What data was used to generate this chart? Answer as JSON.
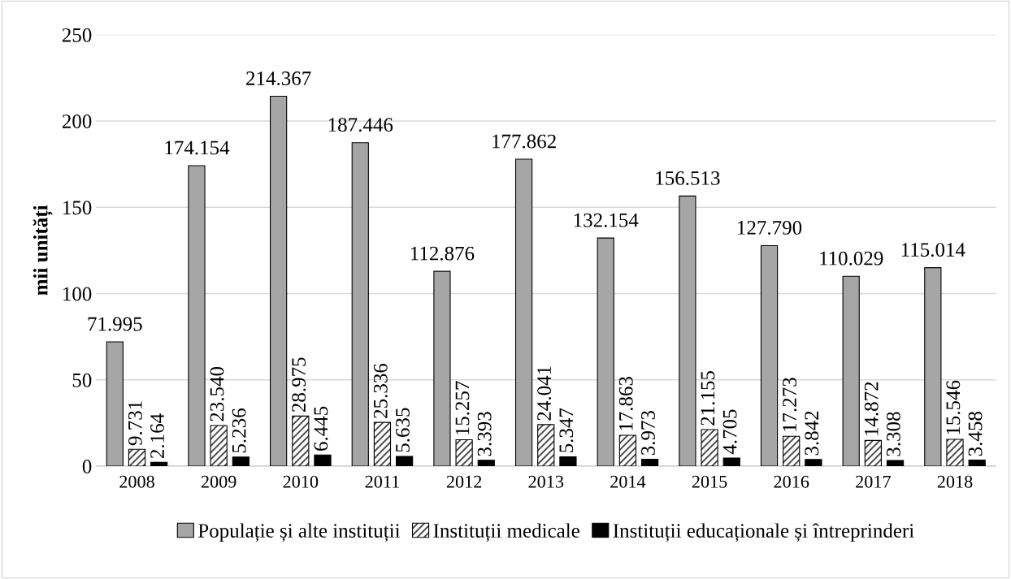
{
  "chart_data": {
    "type": "bar",
    "ylabel": "mii unități",
    "categories": [
      "2008",
      "2009",
      "2010",
      "2011",
      "2012",
      "2013",
      "2014",
      "2015",
      "2016",
      "2017",
      "2018"
    ],
    "series": [
      {
        "name": "Populație și alte instituții",
        "color": "#a6a6a6",
        "values": [
          71.995,
          174.154,
          214.367,
          187.446,
          112.876,
          177.862,
          132.154,
          156.513,
          127.79,
          110.029,
          115.014
        ],
        "value_labels": [
          "71.995",
          "174.154",
          "214.367",
          "187.446",
          "112.876",
          "177.862",
          "132.154",
          "156.513",
          "127.790",
          "110.029",
          "115.014"
        ]
      },
      {
        "name": "Instituții medicale",
        "color": "#000000",
        "values": [
          9.731,
          23.54,
          28.975,
          25.336,
          15.257,
          24.041,
          17.863,
          21.155,
          17.273,
          14.872,
          15.546
        ],
        "value_labels": [
          "9.731",
          "23.540",
          "28.975",
          "25.336",
          "15.257",
          "24.041",
          "17.863",
          "21.155",
          "17.273",
          "14.872",
          "15.546"
        ]
      },
      {
        "name": "Instituții educaționale și întreprinderi",
        "color": "#000000",
        "values": [
          2.164,
          5.236,
          6.445,
          5.635,
          3.393,
          5.347,
          3.973,
          4.705,
          3.842,
          3.308,
          3.458
        ],
        "value_labels": [
          "2.164",
          "5.236",
          "6.445",
          "5.635",
          "3.393",
          "5.347",
          "3.973",
          "4.705",
          "3.842",
          "3.308",
          "3.458"
        ]
      }
    ],
    "ylim": [
      0,
      250
    ],
    "yticks": [
      0,
      50,
      100,
      150,
      200,
      250
    ],
    "grid": "y",
    "legend": "bottom"
  }
}
